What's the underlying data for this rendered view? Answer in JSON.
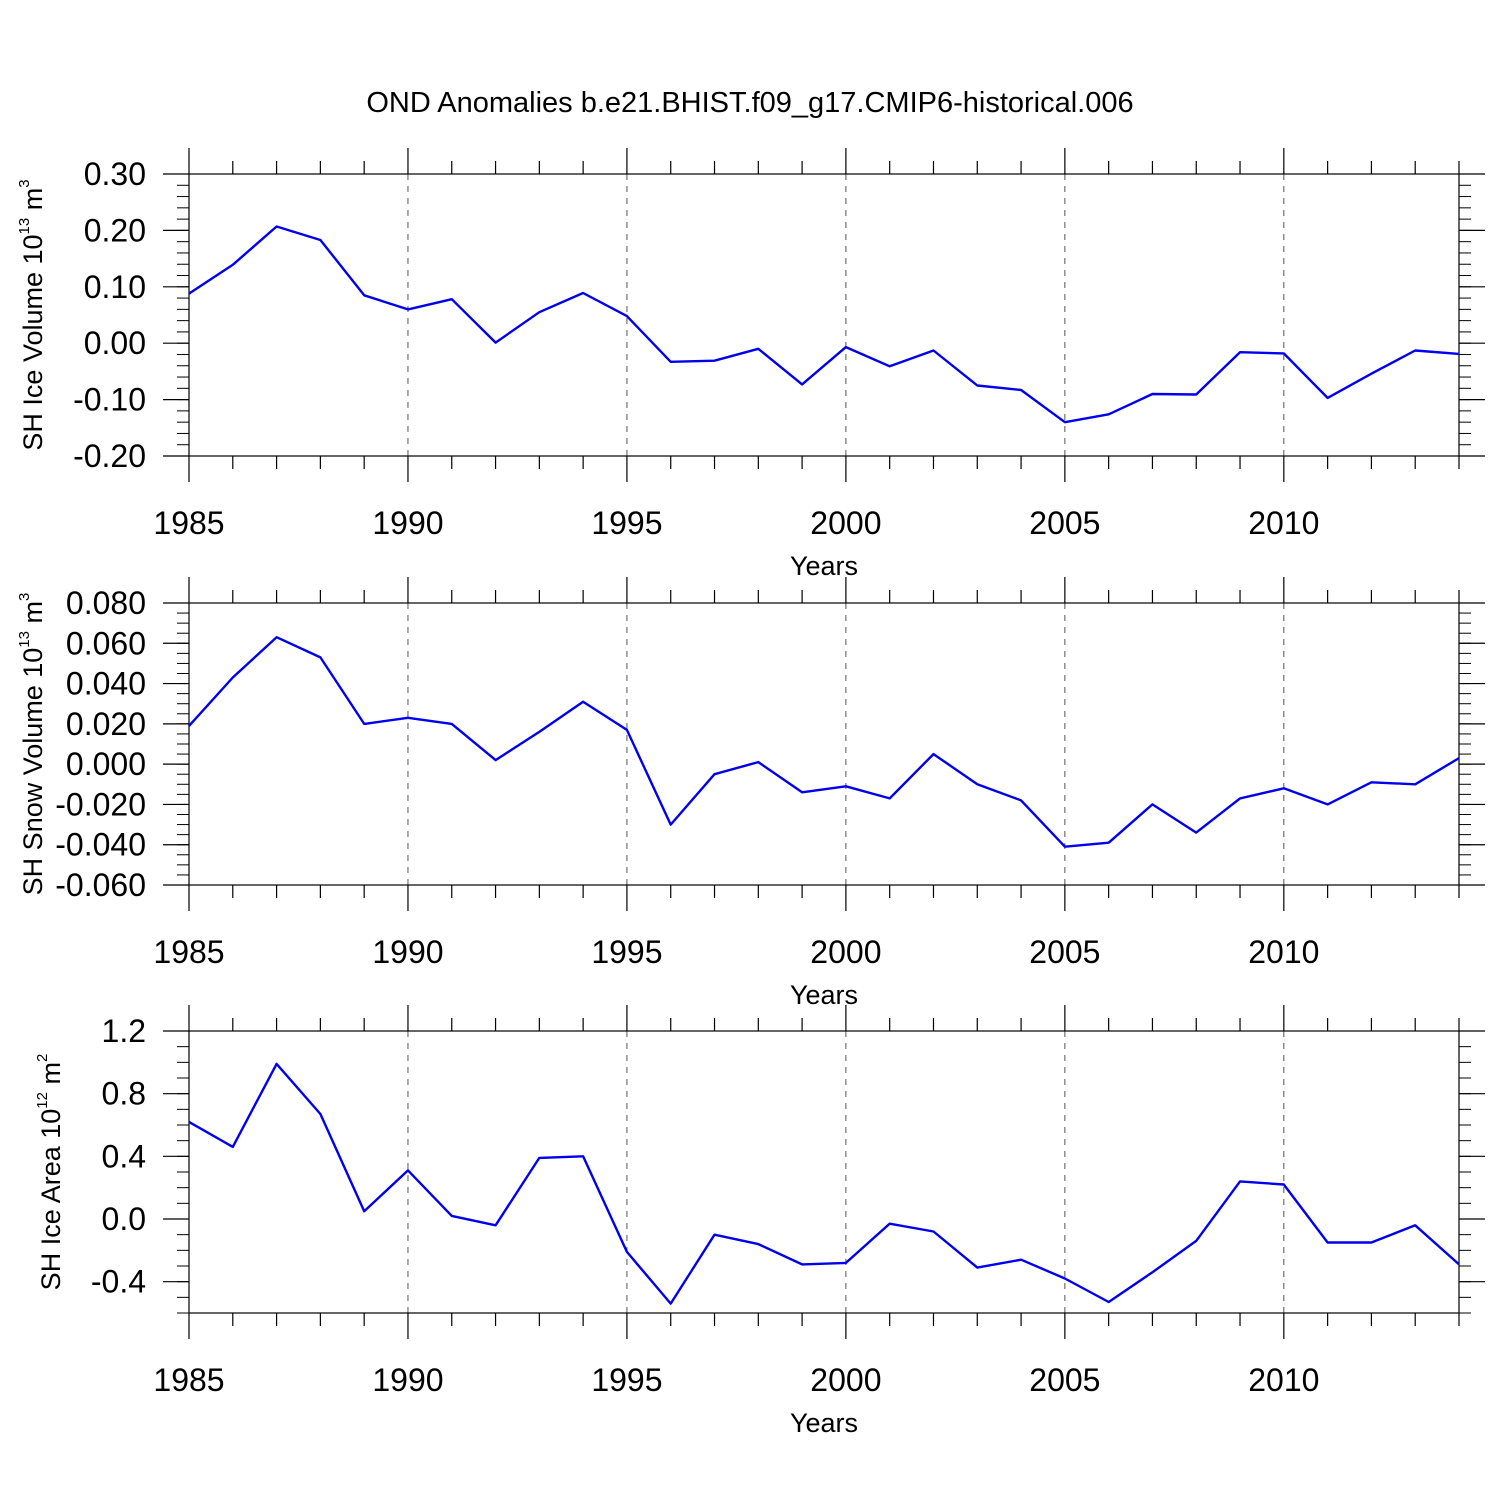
{
  "title": "OND Anomalies b.e21.BHIST.f09_g17.CMIP6-historical.006",
  "style": {
    "line_color": "#0000ee",
    "axis_color": "#000000",
    "grid_color": "#555555"
  },
  "chart_data": [
    {
      "type": "line",
      "ylabel": {
        "prefix": "SH Ice Volume 10",
        "exponent": "13",
        "unit": " m",
        "unit_exponent": "3"
      },
      "xlabel": "Years",
      "xlim": [
        1985,
        2014
      ],
      "ylim": [
        -0.2,
        0.3
      ],
      "yticks": [
        -0.2,
        -0.1,
        0.0,
        0.1,
        0.2,
        0.3
      ],
      "ytick_labels": [
        "-0.20",
        "-0.10",
        "0.00",
        "0.10",
        "0.20",
        "0.30"
      ],
      "yminor_step": 0.02,
      "xticks": [
        1985,
        1990,
        1995,
        2000,
        2005,
        2010
      ],
      "xtick_labels": [
        "1985",
        "1990",
        "1995",
        "2000",
        "2005",
        "2010"
      ],
      "xgrid": [
        1990,
        1995,
        2000,
        2005,
        2010
      ],
      "x": [
        1985,
        1986,
        1987,
        1988,
        1989,
        1990,
        1991,
        1992,
        1993,
        1994,
        1995,
        1996,
        1997,
        1998,
        1999,
        2000,
        2001,
        2002,
        2003,
        2004,
        2005,
        2006,
        2007,
        2008,
        2009,
        2010,
        2011,
        2012,
        2013,
        2014
      ],
      "values": [
        0.088,
        0.139,
        0.207,
        0.183,
        0.085,
        0.06,
        0.078,
        0.001,
        0.055,
        0.089,
        0.048,
        -0.033,
        -0.031,
        -0.01,
        -0.073,
        -0.007,
        -0.041,
        -0.013,
        -0.075,
        -0.083,
        -0.14,
        -0.126,
        -0.09,
        -0.091,
        -0.016,
        -0.018,
        -0.097,
        -0.054,
        -0.013,
        -0.019
      ]
    },
    {
      "type": "line",
      "ylabel": {
        "prefix": "SH Snow Volume 10",
        "exponent": "13",
        "unit": " m",
        "unit_exponent": "3"
      },
      "xlabel": "Years",
      "xlim": [
        1985,
        2014
      ],
      "ylim": [
        -0.06,
        0.08
      ],
      "yticks": [
        -0.06,
        -0.04,
        -0.02,
        0.0,
        0.02,
        0.04,
        0.06,
        0.08
      ],
      "ytick_labels": [
        "-0.060",
        "-0.040",
        "-0.020",
        "0.000",
        "0.020",
        "0.040",
        "0.060",
        "0.080"
      ],
      "yminor_step": 0.005,
      "xticks": [
        1985,
        1990,
        1995,
        2000,
        2005,
        2010
      ],
      "xtick_labels": [
        "1985",
        "1990",
        "1995",
        "2000",
        "2005",
        "2010"
      ],
      "xgrid": [
        1990,
        1995,
        2000,
        2005,
        2010
      ],
      "x": [
        1985,
        1986,
        1987,
        1988,
        1989,
        1990,
        1991,
        1992,
        1993,
        1994,
        1995,
        1996,
        1997,
        1998,
        1999,
        2000,
        2001,
        2002,
        2003,
        2004,
        2005,
        2006,
        2007,
        2008,
        2009,
        2010,
        2011,
        2012,
        2013,
        2014
      ],
      "values": [
        0.019,
        0.043,
        0.063,
        0.053,
        0.02,
        0.023,
        0.02,
        0.002,
        0.016,
        0.031,
        0.017,
        -0.03,
        -0.005,
        0.001,
        -0.014,
        -0.011,
        -0.017,
        0.005,
        -0.01,
        -0.018,
        -0.041,
        -0.039,
        -0.02,
        -0.034,
        -0.017,
        -0.012,
        -0.02,
        -0.009,
        -0.01,
        0.003
      ]
    },
    {
      "type": "line",
      "ylabel": {
        "prefix": "SH Ice Area 10",
        "exponent": "12",
        "unit": " m",
        "unit_exponent": "2"
      },
      "xlabel": "Years",
      "xlim": [
        1985,
        2014
      ],
      "ylim": [
        -0.6,
        1.2
      ],
      "yticks": [
        -0.4,
        0.0,
        0.4,
        0.8,
        1.2
      ],
      "ytick_labels": [
        "-0.4",
        "0.0",
        "0.4",
        "0.8",
        "1.2"
      ],
      "yminor_step": 0.1,
      "xticks": [
        1985,
        1990,
        1995,
        2000,
        2005,
        2010
      ],
      "xtick_labels": [
        "1985",
        "1990",
        "1995",
        "2000",
        "2005",
        "2010"
      ],
      "xgrid": [
        1990,
        1995,
        2000,
        2005,
        2010
      ],
      "x": [
        1985,
        1986,
        1987,
        1988,
        1989,
        1990,
        1991,
        1992,
        1993,
        1994,
        1995,
        1996,
        1997,
        1998,
        1999,
        2000,
        2001,
        2002,
        2003,
        2004,
        2005,
        2006,
        2007,
        2008,
        2009,
        2010,
        2011,
        2012,
        2013,
        2014
      ],
      "values": [
        0.62,
        0.46,
        0.99,
        0.67,
        0.05,
        0.31,
        0.02,
        -0.04,
        0.39,
        0.4,
        -0.21,
        -0.54,
        -0.1,
        -0.16,
        -0.29,
        -0.28,
        -0.03,
        -0.08,
        -0.31,
        -0.26,
        -0.38,
        -0.53,
        -0.34,
        -0.14,
        0.24,
        0.22,
        -0.15,
        -0.15,
        -0.04,
        -0.29
      ]
    }
  ]
}
